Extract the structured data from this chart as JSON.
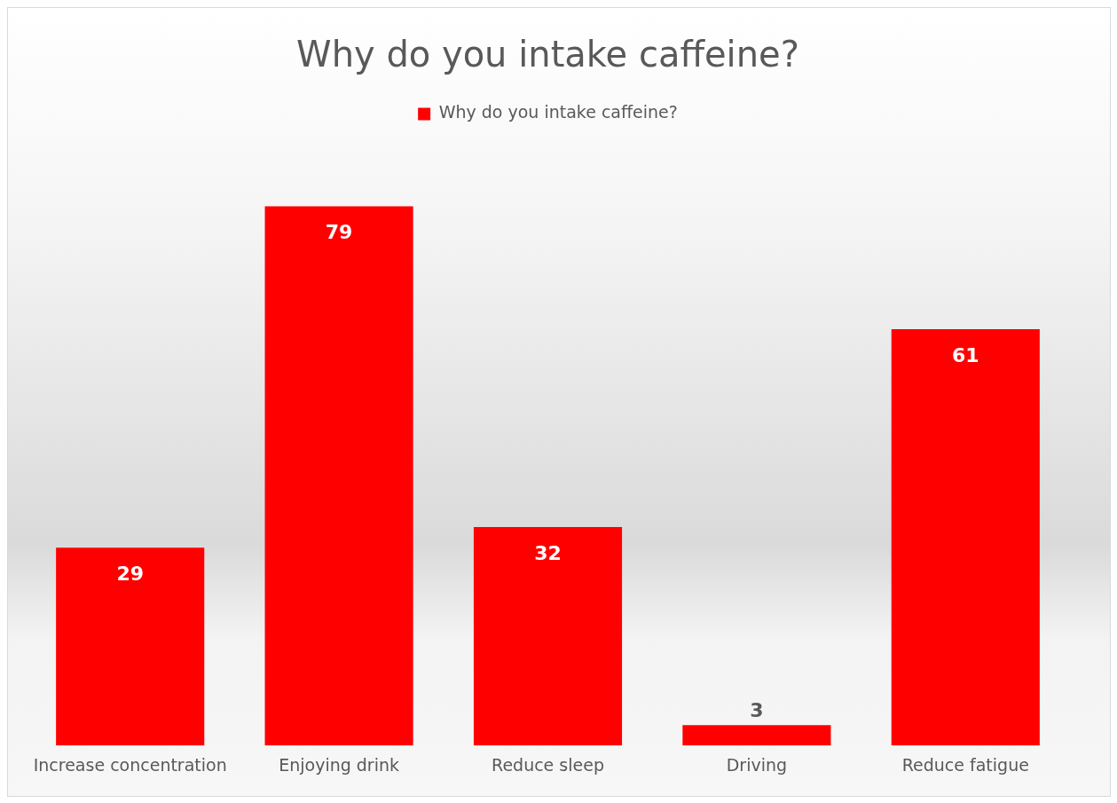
{
  "chart_data": {
    "type": "bar",
    "title": "Why do you intake caffeine?",
    "categories": [
      "Increase concentration",
      "Enjoying drink",
      "Reduce sleep",
      "Driving",
      "Reduce fatigue"
    ],
    "series": [
      {
        "name": "Why do you intake caffeine?",
        "color": "#ff0000",
        "values": [
          29,
          79,
          32,
          3,
          61
        ]
      }
    ],
    "data_labels": true,
    "legend": "top",
    "grid": false
  }
}
